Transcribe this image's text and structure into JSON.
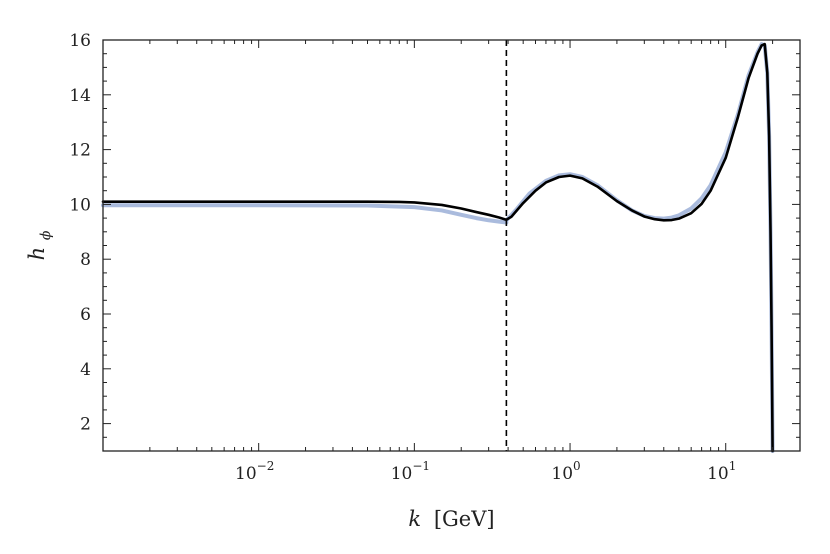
{
  "chart_data": {
    "type": "line",
    "title": "",
    "xlabel": {
      "symbol": "k",
      "unit": "[GeV]"
    },
    "ylabel": {
      "symbol": "h",
      "subscript": "ϕ"
    },
    "x_scale": "log",
    "xlim": [
      0.001,
      30
    ],
    "ylim": [
      1,
      16
    ],
    "x_ticks": [
      {
        "base": "10",
        "exp": "−2",
        "value": 0.01
      },
      {
        "base": "10",
        "exp": "−1",
        "value": 0.1
      },
      {
        "base": "10",
        "exp": "0",
        "value": 1
      },
      {
        "base": "10",
        "exp": "1",
        "value": 10
      }
    ],
    "y_ticks": [
      "2",
      "4",
      "6",
      "8",
      "10",
      "12",
      "14",
      "16"
    ],
    "grid": false,
    "legend": "none",
    "vline": {
      "x": 0.39,
      "style": "dashed",
      "color": "#000000"
    },
    "series": [
      {
        "color": "#aabbdd",
        "x": [
          0.001,
          0.01,
          0.05,
          0.1,
          0.15,
          0.2,
          0.25,
          0.3,
          0.35,
          0.39
        ],
        "y": [
          9.97,
          9.97,
          9.96,
          9.9,
          9.78,
          9.62,
          9.5,
          9.42,
          9.37,
          9.34
        ]
      },
      {
        "color": "#aabbdd",
        "x": [
          0.39,
          0.45,
          0.55,
          0.7,
          0.85,
          1.0,
          1.2,
          1.5,
          2.0,
          2.5,
          3.0,
          3.5,
          4.0,
          4.5,
          5.0,
          6.0,
          7.0,
          8.0,
          10.0,
          12.0,
          14.0,
          16.0,
          17.0,
          17.8,
          18.5,
          19.0,
          19.4,
          19.7,
          19.9,
          20.0
        ],
        "y": [
          9.42,
          9.8,
          10.4,
          10.86,
          11.06,
          11.1,
          11.0,
          10.7,
          10.15,
          9.78,
          9.58,
          9.5,
          9.48,
          9.52,
          9.6,
          9.85,
          10.22,
          10.7,
          11.9,
          13.3,
          14.7,
          15.55,
          15.85,
          15.8,
          14.8,
          12.5,
          9.0,
          5.5,
          2.5,
          1.0
        ]
      },
      {
        "color": "#000000",
        "x": [
          0.001,
          0.01,
          0.05,
          0.08,
          0.1,
          0.15,
          0.2,
          0.25,
          0.3,
          0.35,
          0.38,
          0.39,
          0.42,
          0.5,
          0.6,
          0.7,
          0.85,
          1.0,
          1.2,
          1.5,
          2.0,
          2.5,
          3.0,
          3.5,
          4.0,
          4.5,
          5.0,
          6.0,
          7.0,
          8.0,
          10.0,
          12.0,
          14.0,
          16.0,
          17.0,
          17.8,
          18.5,
          19.0,
          19.4,
          19.7,
          19.9,
          20.0
        ],
        "y": [
          10.1,
          10.1,
          10.1,
          10.09,
          10.07,
          9.98,
          9.85,
          9.72,
          9.62,
          9.52,
          9.46,
          9.44,
          9.55,
          10.05,
          10.5,
          10.8,
          11.0,
          11.05,
          10.95,
          10.65,
          10.12,
          9.78,
          9.56,
          9.46,
          9.42,
          9.43,
          9.48,
          9.68,
          10.02,
          10.5,
          11.7,
          13.2,
          14.6,
          15.5,
          15.8,
          15.85,
          14.8,
          12.5,
          9.0,
          5.5,
          2.5,
          1.0
        ]
      }
    ]
  }
}
